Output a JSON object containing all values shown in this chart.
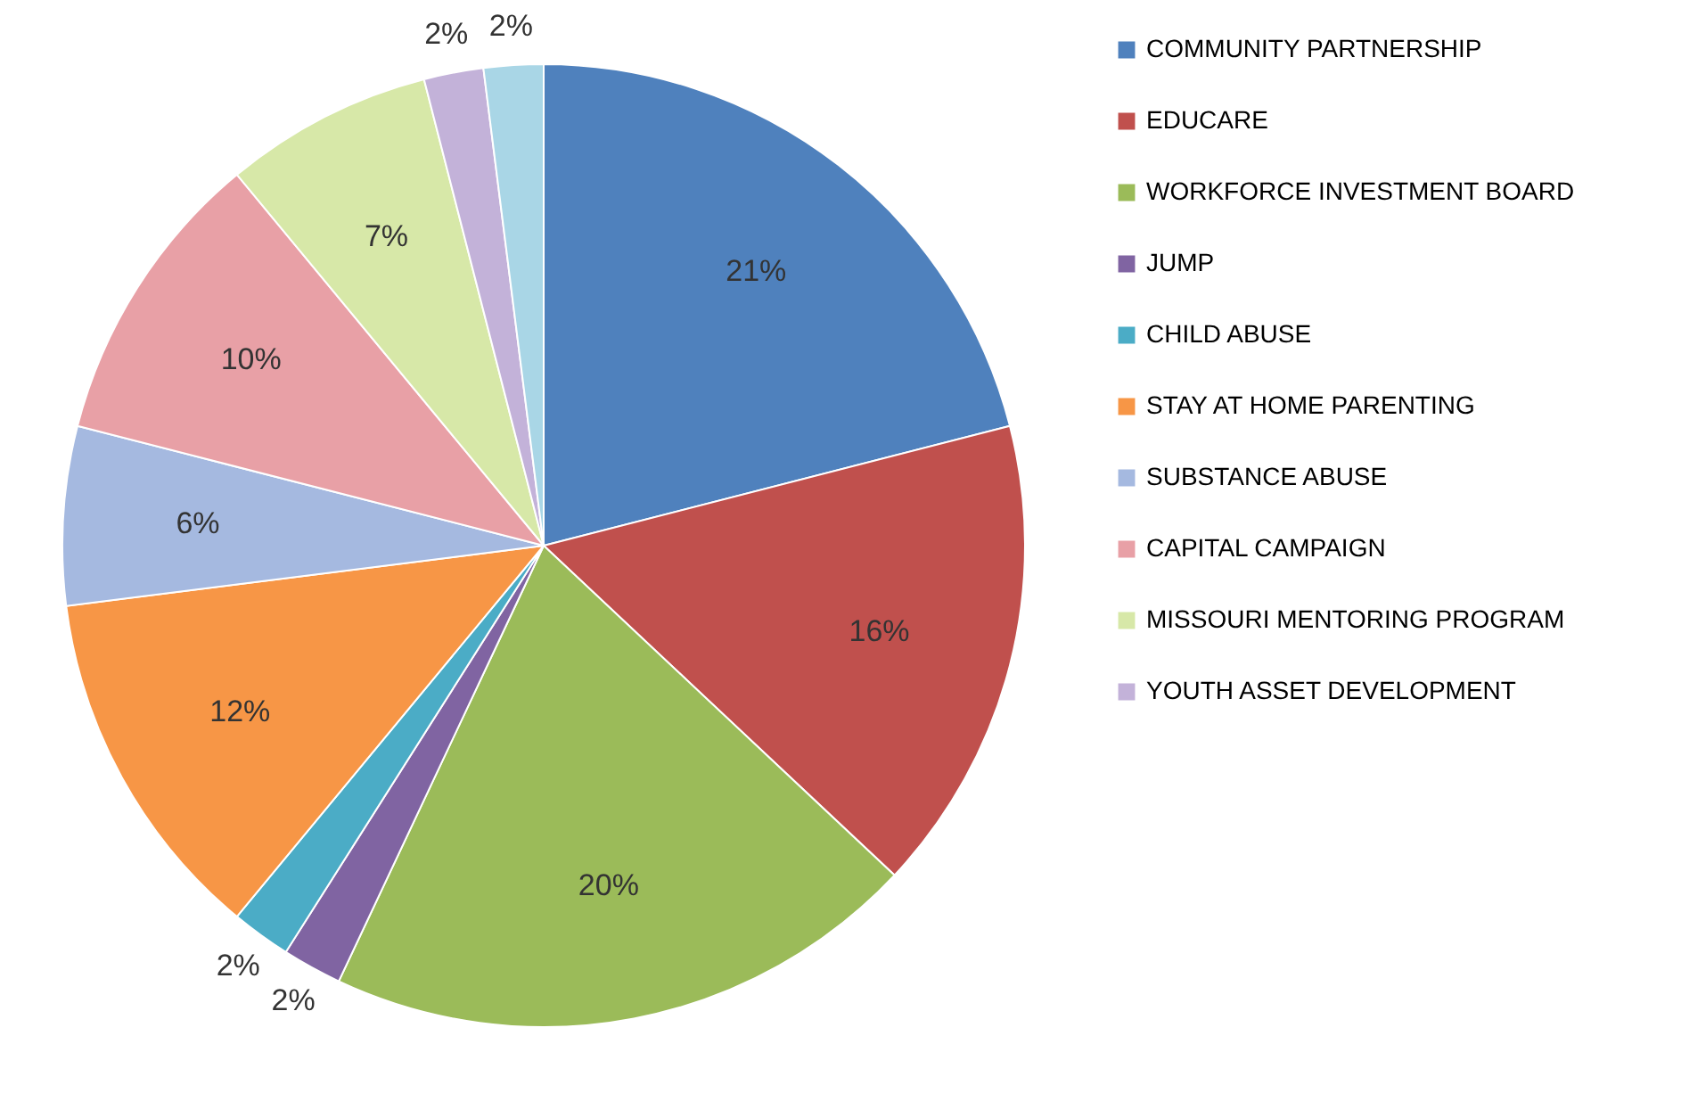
{
  "chart_data": {
    "type": "pie",
    "categories": [
      "COMMUNITY PARTNERSHIP",
      "EDUCARE",
      "WORKFORCE INVESTMENT BOARD",
      "JUMP",
      "CHILD ABUSE",
      "STAY AT HOME PARENTING",
      "SUBSTANCE ABUSE",
      "CAPITAL CAMPAIGN",
      "MISSOURI MENTORING PROGRAM",
      "YOUTH ASSET DEVELOPMENT",
      null
    ],
    "values": [
      21,
      16,
      20,
      2,
      2,
      12,
      6,
      10,
      7,
      2,
      2
    ],
    "colors": [
      "#4f81bd",
      "#c0504d",
      "#9bbb59",
      "#8064a2",
      "#4bacc6",
      "#f79646",
      "#a5b9e0",
      "#e8a0a6",
      "#d7e8a8",
      "#c3b2d9",
      "#a9d6e6"
    ],
    "value_labels": [
      "21%",
      "16%",
      "20%",
      "2%",
      "2%",
      "12%",
      "6%",
      "10%",
      "7%",
      "2%",
      "2%"
    ],
    "legend": "right"
  }
}
